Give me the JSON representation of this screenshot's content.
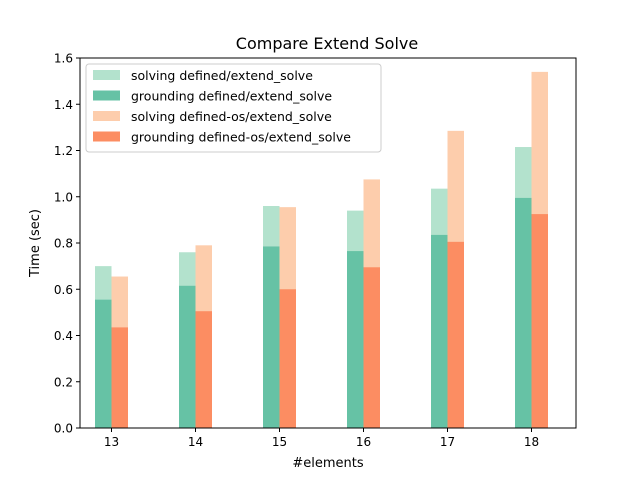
{
  "chart_data": {
    "type": "bar",
    "title": "Compare Extend Solve",
    "xlabel": "#elements",
    "ylabel": "Time (sec)",
    "categories": [
      "13",
      "14",
      "15",
      "16",
      "17",
      "18"
    ],
    "ylim": [
      0,
      1.6
    ],
    "yticks": [
      "0.0",
      "0.2",
      "0.4",
      "0.6",
      "0.8",
      "1.0",
      "1.2",
      "1.4",
      "1.6"
    ],
    "legend_position": "top-left",
    "grid": false,
    "stacked": true,
    "groups": [
      {
        "name": "defined/extend_solve",
        "grounding": {
          "label": "grounding defined/extend_solve",
          "color": "#66c2a5",
          "values": [
            0.555,
            0.615,
            0.785,
            0.765,
            0.835,
            0.995
          ]
        },
        "solving": {
          "label": "solving defined/extend_solve",
          "color": "#b3e2cd",
          "totals": [
            0.7,
            0.76,
            0.96,
            0.94,
            1.035,
            1.215
          ]
        }
      },
      {
        "name": "defined-os/extend_solve",
        "grounding": {
          "label": "grounding defined-os/extend_solve",
          "color": "#fc8d62",
          "values": [
            0.435,
            0.505,
            0.6,
            0.695,
            0.805,
            0.925
          ]
        },
        "solving": {
          "label": "solving defined-os/extend_solve",
          "color": "#fdcdac",
          "totals": [
            0.655,
            0.79,
            0.955,
            1.075,
            1.285,
            1.54
          ]
        }
      }
    ],
    "legend": [
      {
        "label": "solving defined/extend_solve",
        "color": "#b3e2cd"
      },
      {
        "label": "grounding defined/extend_solve",
        "color": "#66c2a5"
      },
      {
        "label": "solving defined-os/extend_solve",
        "color": "#fdcdac"
      },
      {
        "label": "grounding defined-os/extend_solve",
        "color": "#fc8d62"
      }
    ]
  }
}
